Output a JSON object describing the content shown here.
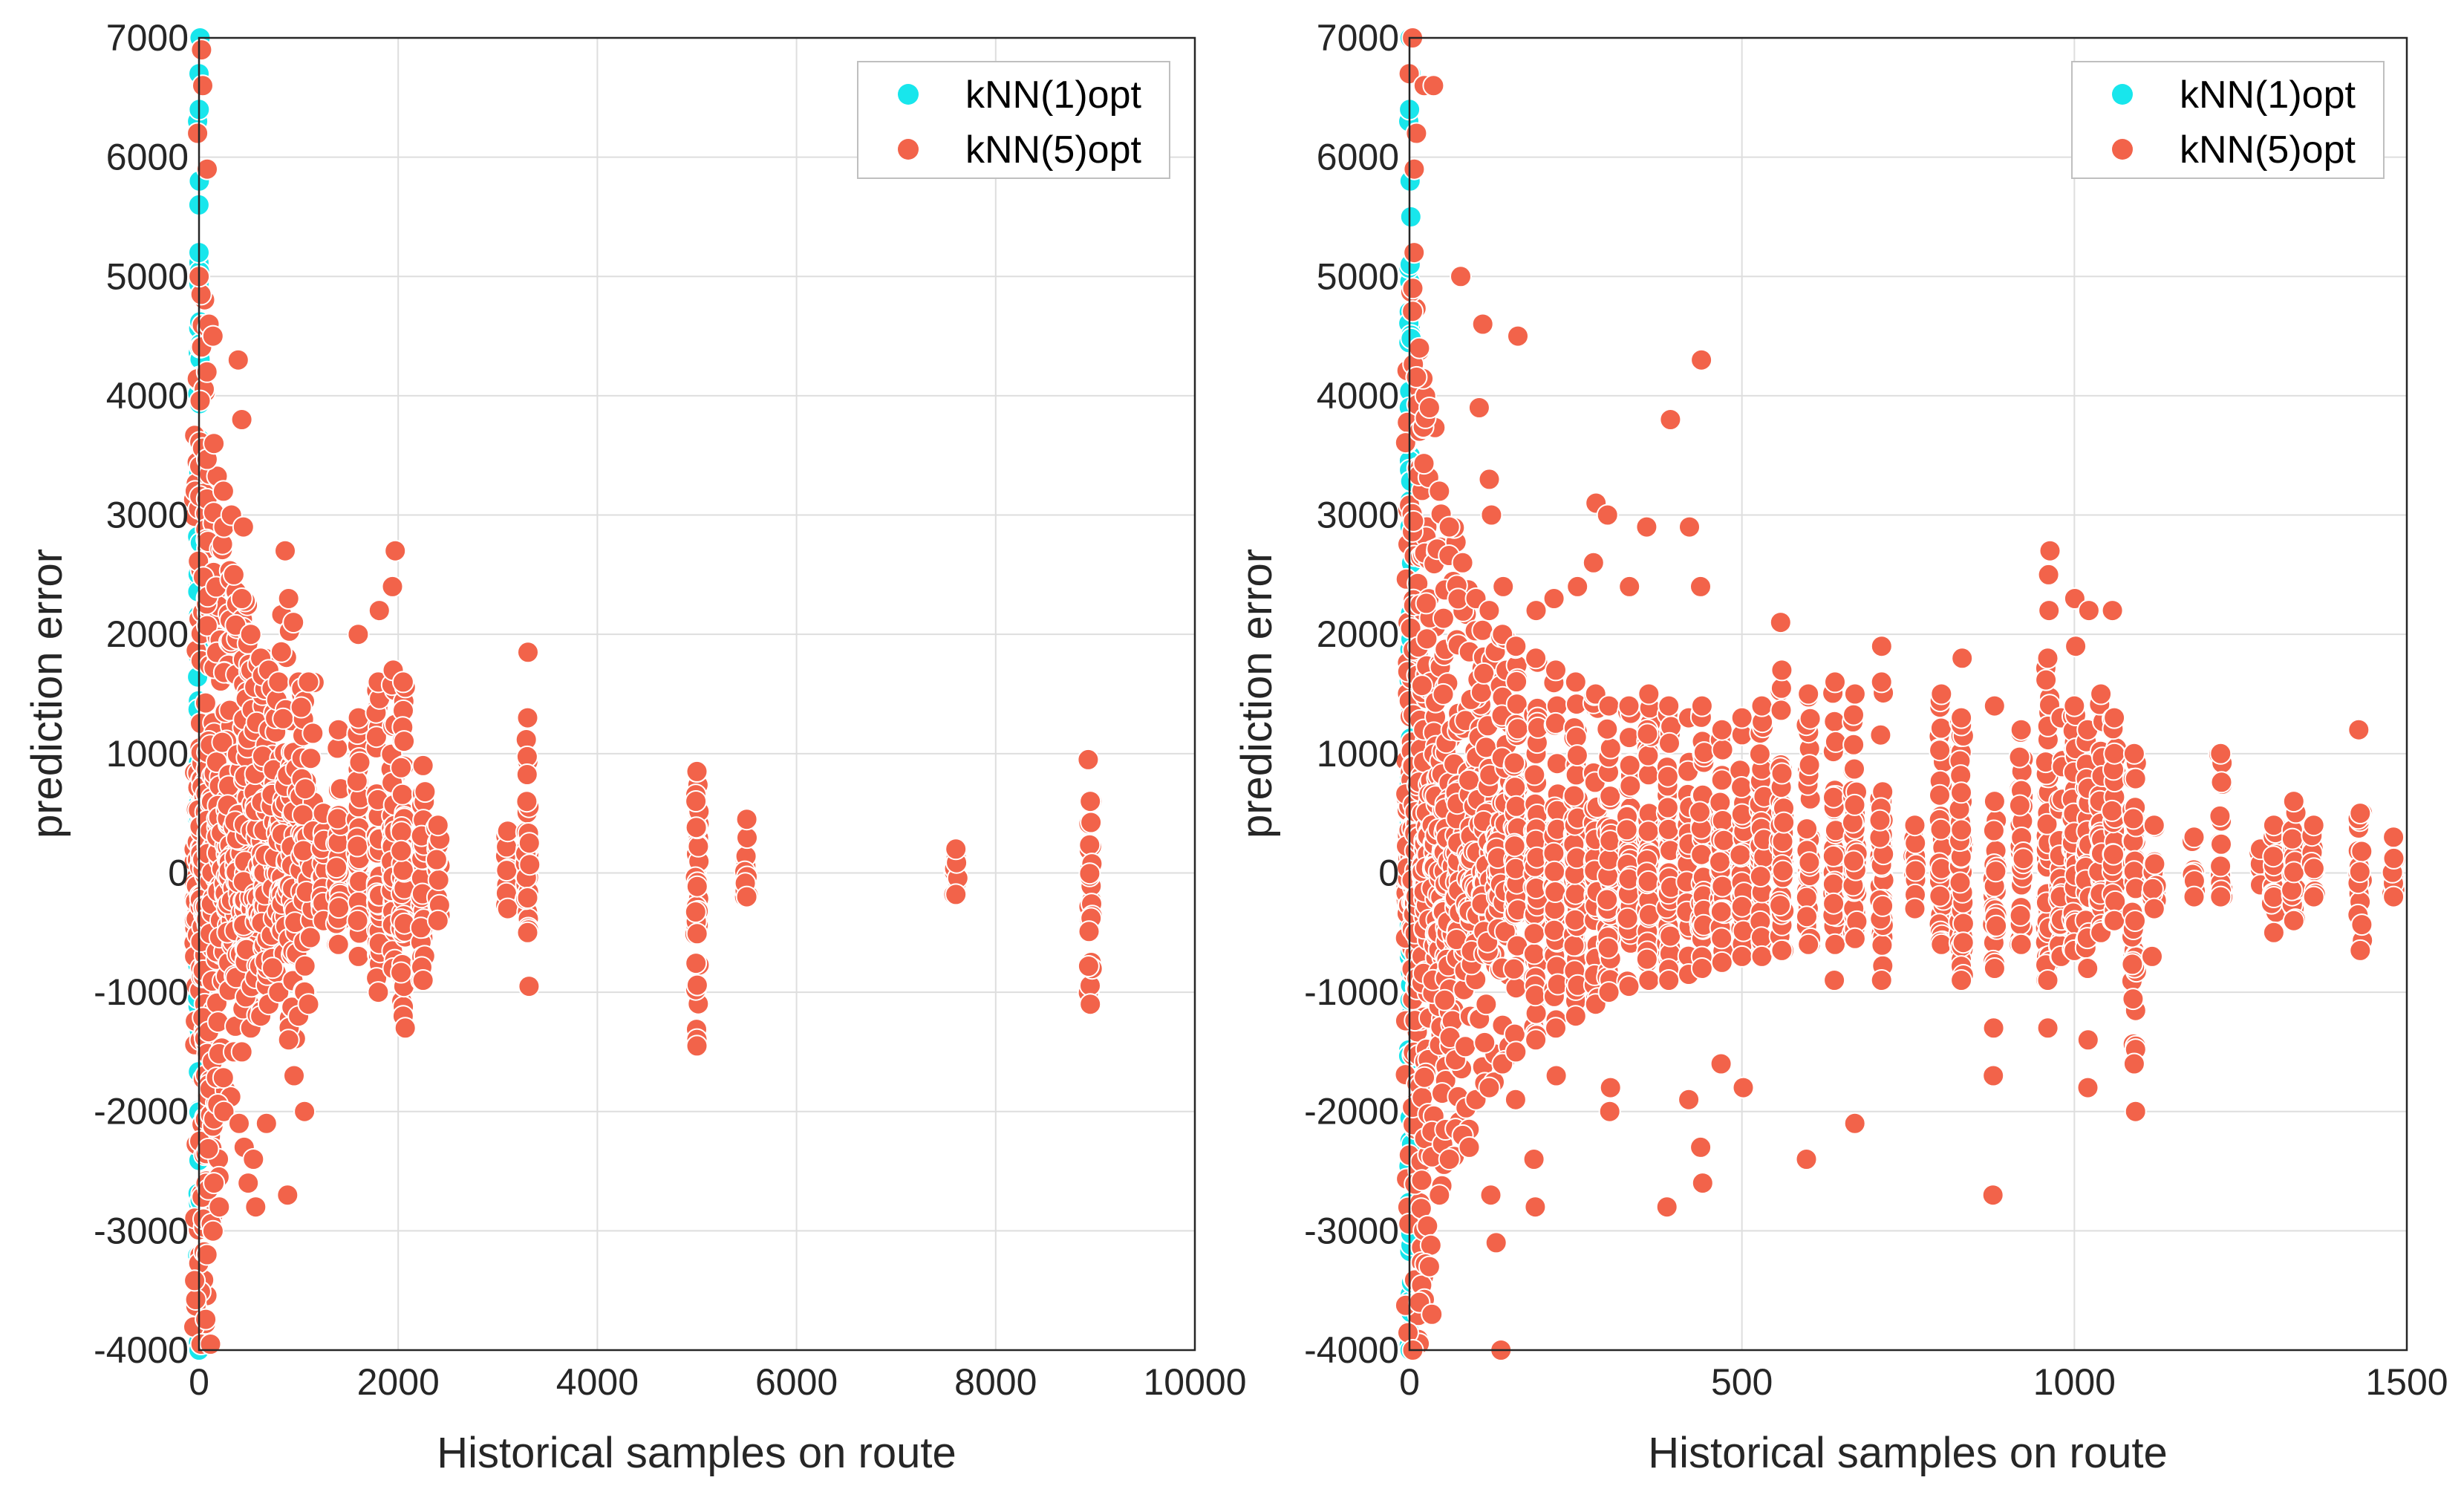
{
  "figure": "two side-by-side scatter plots of prediction error vs historical samples on route",
  "legend_labels": [
    "kNN(1)opt",
    "kNN(5)opt"
  ],
  "series_colors": {
    "kNN(1)opt": "#18e6ec",
    "kNN(5)opt": "#f2634a"
  },
  "chart_data": [
    {
      "type": "scatter",
      "xlabel": "Historical samples on route",
      "ylabel": "prediction error",
      "xlim": [
        0,
        10000
      ],
      "ylim": [
        -4000,
        7000
      ],
      "xticks": [
        "0",
        "2000",
        "4000",
        "6000",
        "8000",
        "10000"
      ],
      "yticks": [
        "-4000",
        "-3000",
        "-2000",
        "-1000",
        "0",
        "1000",
        "2000",
        "3000",
        "4000",
        "5000",
        "6000",
        "7000"
      ],
      "grid": true,
      "legend_position": "top-right",
      "series": [
        {
          "name": "kNN(1)opt",
          "color": "#18e6ec",
          "columns": [
            {
              "x": 0,
              "min": -4000,
              "max": 5200,
              "outliers": [
                5600,
                5800,
                6300,
                6400,
                6700,
                7000
              ]
            }
          ]
        },
        {
          "name": "kNN(5)opt",
          "color": "#f2634a",
          "columns": [
            {
              "x": 20,
              "min": -3950,
              "max": 4850,
              "outliers": [
                5000,
                5900,
                6200,
                6600,
                6900
              ]
            },
            {
              "x": 80,
              "min": -3200,
              "max": 4200,
              "outliers": [
                4600
              ]
            },
            {
              "x": 150,
              "min": -2600,
              "max": 3600,
              "outliers": [
                -3950,
                4500
              ]
            },
            {
              "x": 250,
              "min": -2000,
              "max": 2900,
              "outliers": [
                -2800,
                3200
              ]
            },
            {
              "x": 350,
              "min": -1500,
              "max": 2500,
              "outliers": [
                -2100,
                3000
              ]
            },
            {
              "x": 430,
              "min": -1500,
              "max": 2300,
              "outliers": [
                -2300,
                -2600,
                2900,
                3800,
                4300
              ]
            },
            {
              "x": 520,
              "min": -1300,
              "max": 2000,
              "outliers": [
                -2800
              ]
            },
            {
              "x": 620,
              "min": -1200,
              "max": 1800,
              "outliers": [
                -2400
              ]
            },
            {
              "x": 700,
              "min": -1100,
              "max": 1700,
              "outliers": [
                -2100
              ]
            },
            {
              "x": 800,
              "min": -1000,
              "max": 1600,
              "outliers": []
            },
            {
              "x": 900,
              "min": -1400,
              "max": 2300,
              "outliers": [
                -2700,
                2700
              ]
            },
            {
              "x": 1000,
              "min": -1200,
              "max": 1600,
              "outliers": [
                -1700,
                2100
              ]
            },
            {
              "x": 1100,
              "min": -1100,
              "max": 1600,
              "outliers": [
                -2000
              ]
            },
            {
              "x": 1250,
              "min": -400,
              "max": 500,
              "outliers": []
            },
            {
              "x": 1400,
              "min": -600,
              "max": 1200,
              "outliers": []
            },
            {
              "x": 1600,
              "min": -700,
              "max": 1300,
              "outliers": [
                -400,
                2000
              ]
            },
            {
              "x": 1800,
              "min": -1000,
              "max": 1600,
              "outliers": [
                2200
              ]
            },
            {
              "x": 1950,
              "min": -800,
              "max": 1700,
              "outliers": [
                2400,
                2700
              ]
            },
            {
              "x": 2050,
              "min": -1200,
              "max": 1600,
              "outliers": [
                -1300
              ]
            },
            {
              "x": 2250,
              "min": -900,
              "max": 900,
              "outliers": []
            },
            {
              "x": 2400,
              "min": -400,
              "max": 400,
              "outliers": []
            },
            {
              "x": 3100,
              "min": -300,
              "max": 350,
              "outliers": []
            },
            {
              "x": 3300,
              "min": -500,
              "max": 1300,
              "outliers": [
                -950,
                1850
              ]
            },
            {
              "x": 5000,
              "min": -1450,
              "max": 850,
              "outliers": []
            },
            {
              "x": 5500,
              "min": -200,
              "max": 450,
              "outliers": []
            },
            {
              "x": 7600,
              "min": -180,
              "max": 200,
              "outliers": []
            },
            {
              "x": 8950,
              "min": -1100,
              "max": 600,
              "outliers": [
                950
              ]
            }
          ]
        }
      ]
    },
    {
      "type": "scatter",
      "xlabel": "Historical samples on route",
      "ylabel": "prediction error",
      "xlim": [
        0,
        1500
      ],
      "ylim": [
        -4000,
        7000
      ],
      "xticks": [
        "0",
        "500",
        "1000",
        "1500"
      ],
      "yticks": [
        "-4000",
        "-3000",
        "-2000",
        "-1000",
        "0",
        "1000",
        "2000",
        "3000",
        "4000",
        "5000",
        "6000",
        "7000"
      ],
      "grid": true,
      "legend_position": "top-right",
      "series": [
        {
          "name": "kNN(1)opt",
          "color": "#18e6ec",
          "columns": [
            {
              "x": 1,
              "min": -4000,
              "max": 5100,
              "outliers": [
                5500,
                5800,
                6300,
                6400,
                6700,
                7000
              ]
            }
          ]
        },
        {
          "name": "kNN(5)opt",
          "color": "#f2634a",
          "columns": [
            {
              "x": 5,
              "min": -4000,
              "max": 4900,
              "outliers": [
                5200,
                5900,
                6200,
                6700,
                7000
              ]
            },
            {
              "x": 15,
              "min": -3600,
              "max": 4400,
              "outliers": [
                6600
              ]
            },
            {
              "x": 30,
              "min": -3300,
              "max": 3900,
              "outliers": [
                -3700,
                6600
              ]
            },
            {
              "x": 45,
              "min": -2700,
              "max": 3200,
              "outliers": []
            },
            {
              "x": 60,
              "min": -2400,
              "max": 2900,
              "outliers": []
            },
            {
              "x": 80,
              "min": -2200,
              "max": 2600,
              "outliers": [
                5000
              ]
            },
            {
              "x": 100,
              "min": -1900,
              "max": 2300,
              "outliers": [
                -2300,
                3900,
                4600
              ]
            },
            {
              "x": 120,
              "min": -1800,
              "max": 2200,
              "outliers": [
                -2700,
                3000,
                3300
              ]
            },
            {
              "x": 140,
              "min": -1600,
              "max": 2000,
              "outliers": [
                -3100,
                -4000,
                2400
              ]
            },
            {
              "x": 160,
              "min": -1500,
              "max": 1900,
              "outliers": [
                -1900,
                4500
              ]
            },
            {
              "x": 190,
              "min": -1400,
              "max": 1800,
              "outliers": [
                -2400,
                -2800,
                2200
              ]
            },
            {
              "x": 220,
              "min": -1300,
              "max": 1700,
              "outliers": [
                -1700,
                2300
              ]
            },
            {
              "x": 250,
              "min": -1200,
              "max": 1600,
              "outliers": [
                2400
              ]
            },
            {
              "x": 280,
              "min": -1100,
              "max": 1500,
              "outliers": [
                2600,
                3100
              ]
            },
            {
              "x": 300,
              "min": -1000,
              "max": 1400,
              "outliers": [
                -1800,
                -2000,
                3000
              ]
            },
            {
              "x": 330,
              "min": -950,
              "max": 1400,
              "outliers": [
                2400
              ]
            },
            {
              "x": 360,
              "min": -900,
              "max": 1500,
              "outliers": [
                2900
              ]
            },
            {
              "x": 390,
              "min": -900,
              "max": 1400,
              "outliers": [
                -2800,
                3800
              ]
            },
            {
              "x": 420,
              "min": -850,
              "max": 1300,
              "outliers": [
                -1900,
                2900
              ]
            },
            {
              "x": 440,
              "min": -800,
              "max": 1400,
              "outliers": [
                -2300,
                -2600,
                2400,
                4300
              ]
            },
            {
              "x": 470,
              "min": -750,
              "max": 1200,
              "outliers": [
                -1600
              ]
            },
            {
              "x": 500,
              "min": -700,
              "max": 1300,
              "outliers": [
                -1800
              ]
            },
            {
              "x": 530,
              "min": -700,
              "max": 1400,
              "outliers": []
            },
            {
              "x": 560,
              "min": -650,
              "max": 1700,
              "outliers": [
                2100
              ]
            },
            {
              "x": 600,
              "min": -600,
              "max": 1500,
              "outliers": [
                -2400
              ]
            },
            {
              "x": 640,
              "min": -600,
              "max": 1600,
              "outliers": [
                -900
              ]
            },
            {
              "x": 670,
              "min": -550,
              "max": 1500,
              "outliers": [
                -2100
              ]
            },
            {
              "x": 710,
              "min": -900,
              "max": 1600,
              "outliers": [
                1900
              ]
            },
            {
              "x": 760,
              "min": -300,
              "max": 400,
              "outliers": []
            },
            {
              "x": 800,
              "min": -600,
              "max": 1500,
              "outliers": []
            },
            {
              "x": 830,
              "min": -900,
              "max": 1300,
              "outliers": [
                1800
              ]
            },
            {
              "x": 880,
              "min": -800,
              "max": 600,
              "outliers": [
                -1300,
                -1700,
                -2700,
                1400
              ]
            },
            {
              "x": 920,
              "min": -600,
              "max": 1200,
              "outliers": []
            },
            {
              "x": 960,
              "min": -900,
              "max": 1800,
              "outliers": [
                -1300,
                2200,
                2500,
                2700
              ]
            },
            {
              "x": 980,
              "min": -700,
              "max": 1300,
              "outliers": []
            },
            {
              "x": 1000,
              "min": -650,
              "max": 1400,
              "outliers": [
                1900,
                2300
              ]
            },
            {
              "x": 1020,
              "min": -800,
              "max": 1200,
              "outliers": [
                -1400,
                -1800,
                2200
              ]
            },
            {
              "x": 1040,
              "min": -500,
              "max": 1500,
              "outliers": []
            },
            {
              "x": 1060,
              "min": -400,
              "max": 1300,
              "outliers": [
                2200
              ]
            },
            {
              "x": 1090,
              "min": -1600,
              "max": 1000,
              "outliers": [
                -2000
              ]
            },
            {
              "x": 1120,
              "min": -300,
              "max": 400,
              "outliers": [
                -700
              ]
            },
            {
              "x": 1180,
              "min": -200,
              "max": 300,
              "outliers": []
            },
            {
              "x": 1220,
              "min": -200,
              "max": 1000,
              "outliers": []
            },
            {
              "x": 1280,
              "min": -100,
              "max": 200,
              "outliers": []
            },
            {
              "x": 1300,
              "min": -500,
              "max": 400,
              "outliers": []
            },
            {
              "x": 1330,
              "min": -400,
              "max": 600,
              "outliers": []
            },
            {
              "x": 1360,
              "min": -200,
              "max": 400,
              "outliers": []
            },
            {
              "x": 1430,
              "min": -650,
              "max": 500,
              "outliers": [
                1200
              ]
            },
            {
              "x": 1480,
              "min": -200,
              "max": 300,
              "outliers": []
            }
          ]
        }
      ]
    }
  ]
}
